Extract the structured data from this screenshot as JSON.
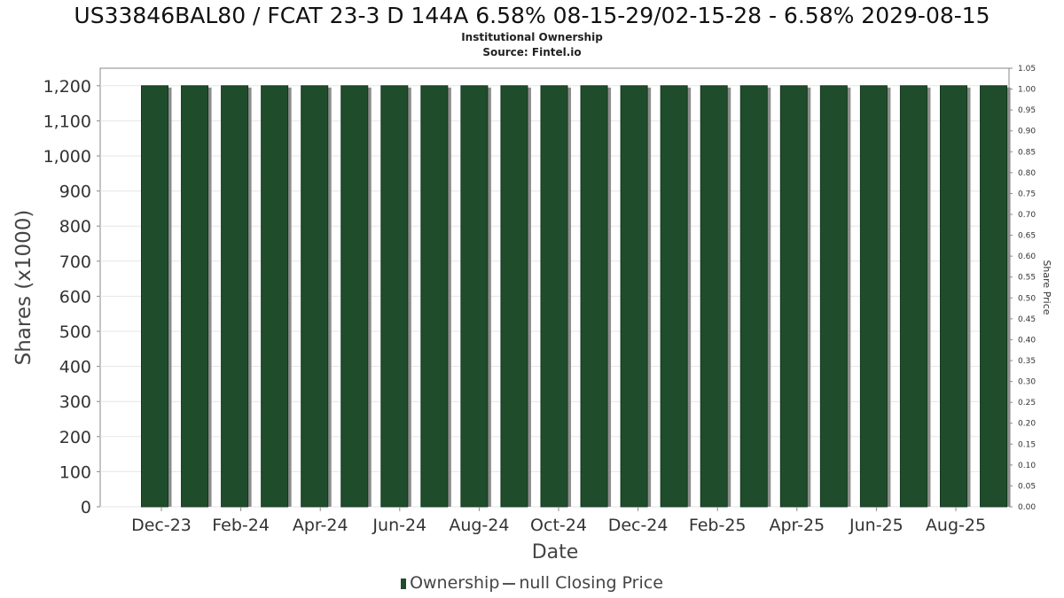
{
  "chart_data": {
    "type": "bar",
    "title": "US33846BAL80 / FCAT 23-3 D 144A 6.58% 08-15-29/02-15-28 - 6.58% 2029-08-15",
    "subtitles": [
      "Institutional Ownership",
      "Source: Fintel.io"
    ],
    "xlabel": "Date",
    "ylabel": "Shares (x1000)",
    "y2label": "Share Price",
    "ylim": [
      0,
      1250
    ],
    "y2lim": [
      0,
      1.05
    ],
    "yticks": [
      "0",
      "100",
      "200",
      "300",
      "400",
      "500",
      "600",
      "700",
      "800",
      "900",
      "1,000",
      "1,100",
      "1,200"
    ],
    "y2ticks": [
      "0.00",
      "0.05",
      "0.10",
      "0.15",
      "0.20",
      "0.25",
      "0.30",
      "0.35",
      "0.40",
      "0.45",
      "0.50",
      "0.55",
      "0.60",
      "0.65",
      "0.70",
      "0.75",
      "0.80",
      "0.85",
      "0.90",
      "0.95",
      "1.00",
      "1.05"
    ],
    "xticks": [
      "Dec-23",
      "Feb-24",
      "Apr-24",
      "Jun-24",
      "Aug-24",
      "Oct-24",
      "Dec-24",
      "Feb-25",
      "Apr-25",
      "Jun-25",
      "Aug-25"
    ],
    "series": [
      {
        "name": "Ownership",
        "values": [
          1200,
          1200,
          1200,
          1200,
          1200,
          1200,
          1200,
          1200,
          1200,
          1200,
          1200,
          1200,
          1200,
          1200,
          1200,
          1200,
          1200,
          1200,
          1200,
          1200,
          1200,
          1200
        ]
      }
    ],
    "legend": [
      {
        "label": "Ownership",
        "marker": "bar"
      },
      {
        "label": "null Closing Price",
        "marker": "line"
      }
    ],
    "legend_position": "bottom",
    "grid": true,
    "colors": {
      "bar": "#1f4d2b",
      "bar_shadow": "#8c8c8c",
      "grid": "#e6e6e6",
      "axis": "#888888"
    }
  }
}
